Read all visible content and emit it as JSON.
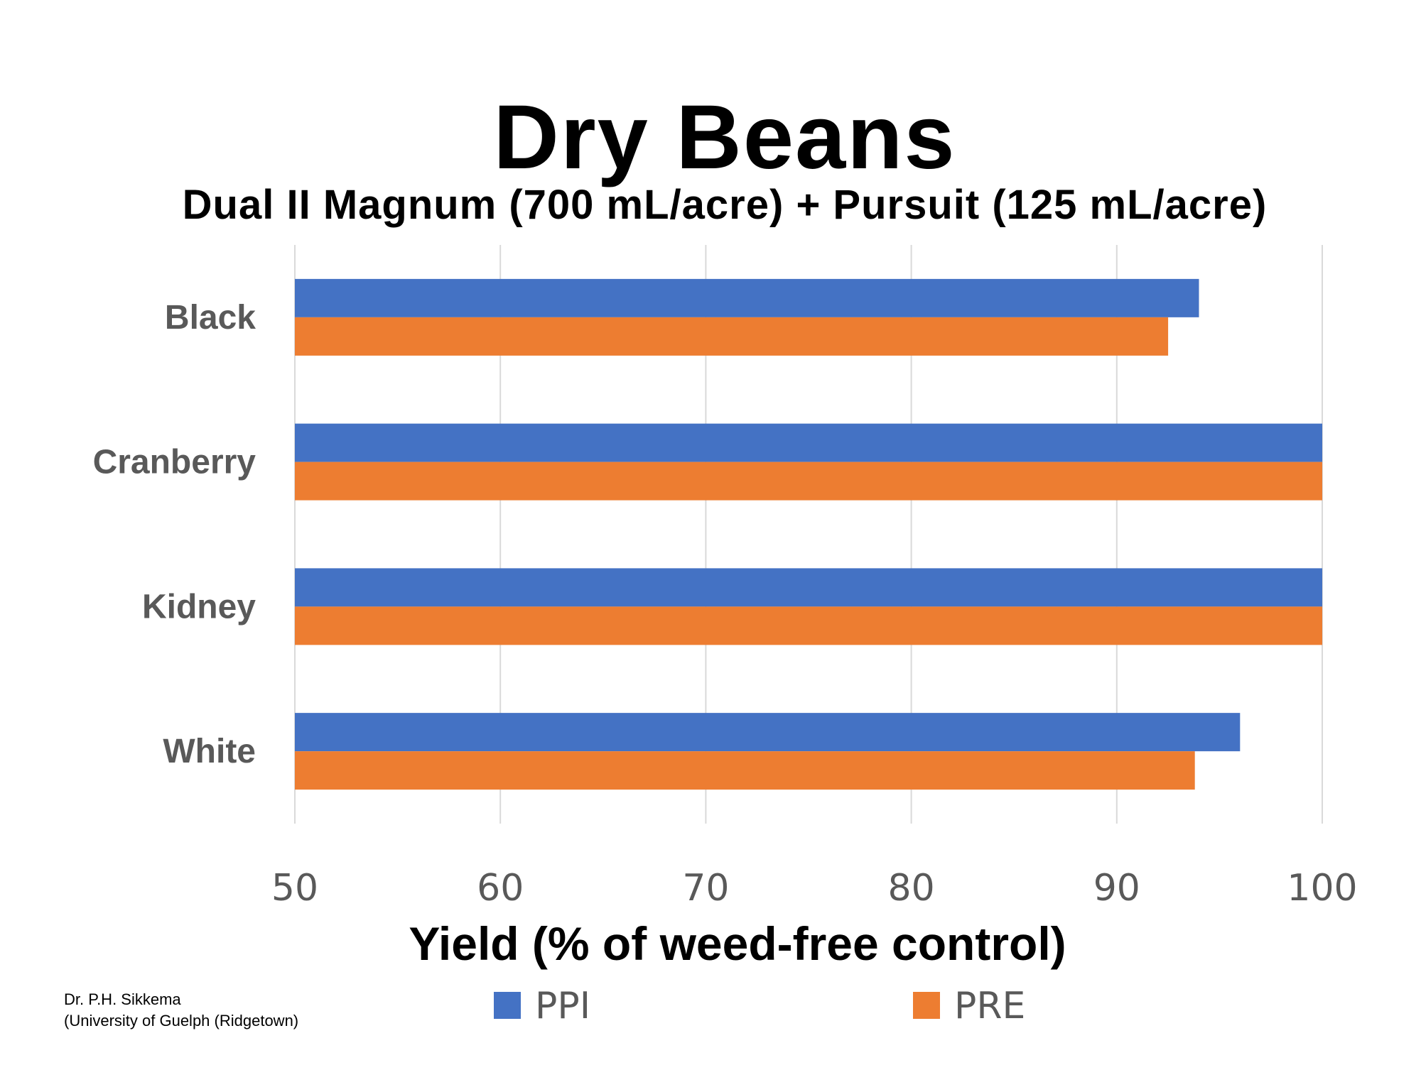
{
  "title": "Dry Beans",
  "subtitle": "Dual II Magnum (700 mL/acre) + Pursuit (125 mL/acre)",
  "credit": {
    "line1": "Dr. P.H. Sikkema",
    "line2": "(University of Guelph (Ridgetown)"
  },
  "chart_data": {
    "type": "bar",
    "orientation": "horizontal",
    "categories": [
      "Black",
      "Cranberry",
      "Kidney",
      "White"
    ],
    "series": [
      {
        "name": "PPI",
        "color": "#4472C4",
        "values": [
          94.0,
          100,
          100,
          96.0
        ]
      },
      {
        "name": "PRE",
        "color": "#ED7D31",
        "values": [
          92.5,
          100,
          100,
          93.8
        ]
      }
    ],
    "xlabel": "Yield (% of weed-free control)",
    "xlim": [
      50,
      100
    ],
    "xticks": [
      50,
      60,
      70,
      80,
      90,
      100
    ],
    "grid": true,
    "legend": "bottom"
  }
}
